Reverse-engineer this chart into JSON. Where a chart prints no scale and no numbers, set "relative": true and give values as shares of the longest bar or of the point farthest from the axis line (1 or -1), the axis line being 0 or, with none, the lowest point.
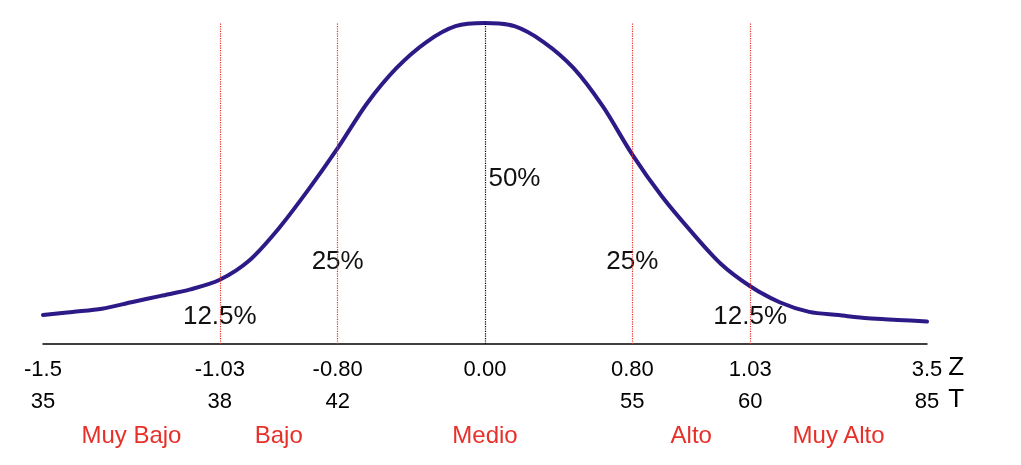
{
  "chart_data": {
    "type": "line",
    "relative": true,
    "categories": [
      "-1.5\n35",
      null,
      null,
      null,
      null,
      null,
      "-1.03\n38",
      null,
      null,
      null,
      "-0.80\n42",
      null,
      null,
      null,
      null,
      "0.00",
      null,
      null,
      null,
      null,
      "0.80\n55",
      null,
      null,
      null,
      "1.03\n60",
      null,
      null,
      null,
      null,
      null,
      "3.5\n85"
    ],
    "values": [
      0.09,
      0.1,
      0.11,
      0.13,
      0.15,
      0.17,
      0.2,
      0.26,
      0.36,
      0.48,
      0.61,
      0.75,
      0.86,
      0.94,
      0.99,
      1,
      0.99,
      0.94,
      0.86,
      0.74,
      0.59,
      0.46,
      0.35,
      0.25,
      0.18,
      0.13,
      0.1,
      0.09,
      0.08,
      0.075,
      0.07
    ],
    "color": "#2e1a87",
    "marker": "none",
    "line_style": "solid",
    "grid": false,
    "xlabel": "Z\nT",
    "ref_lines": [
      {
        "axis": "x",
        "value": "-1.03\n38",
        "color": "#e8302a",
        "line_style": "dotted"
      },
      {
        "axis": "x",
        "value": "-0.80\n42",
        "color": "#e8302a",
        "line_style": "dotted"
      },
      {
        "axis": "x",
        "value": "0.00",
        "color": "#000000",
        "line_style": "dotted"
      },
      {
        "axis": "x",
        "value": "0.80\n55",
        "color": "#e8302a",
        "line_style": "dotted"
      },
      {
        "axis": "x",
        "value": "1.03\n60",
        "color": "#e8302a",
        "line_style": "dotted"
      }
    ],
    "annotations": [
      "50%",
      "25%",
      "25%",
      "12.5%",
      "12.5%",
      "Muy Bajo",
      "Bajo",
      "Medio",
      "Alto",
      "Muy Alto"
    ]
  }
}
